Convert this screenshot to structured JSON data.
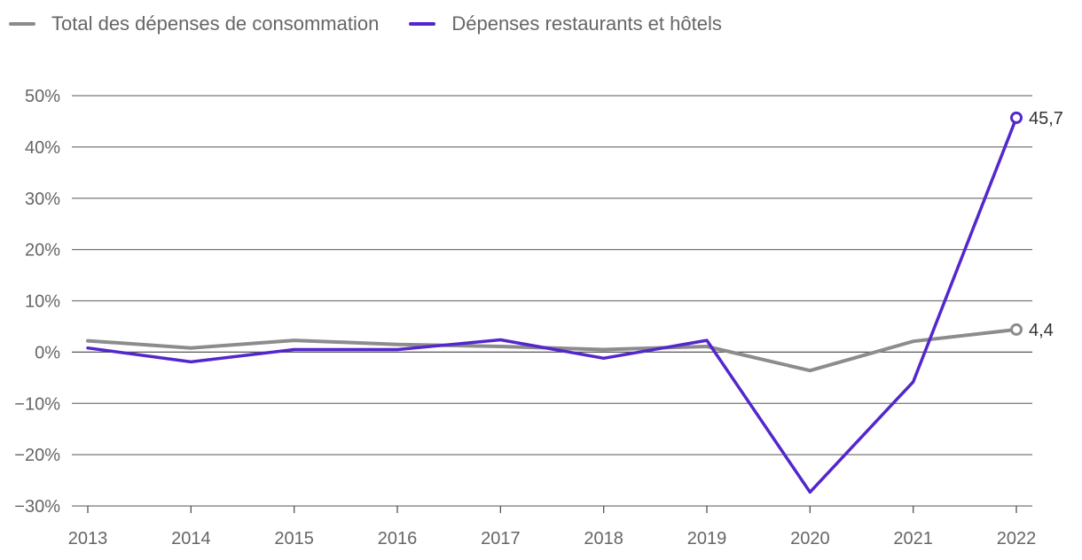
{
  "chart_data": {
    "type": "line",
    "title": "",
    "xlabel": "",
    "ylabel": "",
    "x": [
      2013,
      2014,
      2015,
      2016,
      2017,
      2018,
      2019,
      2020,
      2021,
      2022
    ],
    "x_tick_labels": [
      "2013",
      "2014",
      "2015",
      "2016",
      "2017",
      "2018",
      "2019",
      "2020",
      "2021",
      "2022"
    ],
    "ylim": [
      -30,
      50
    ],
    "y_ticks": [
      50,
      40,
      30,
      20,
      10,
      0,
      -10,
      -20,
      -30
    ],
    "y_tick_labels": [
      "50%",
      "40%",
      "30%",
      "20%",
      "10%",
      "0%",
      "−10%",
      "−20%",
      "−30%"
    ],
    "grid": true,
    "legend_position": "top-left",
    "series": [
      {
        "name": "Total des dépenses de consommation",
        "color": "#8c8c8c",
        "values": [
          2.2,
          0.8,
          2.3,
          1.5,
          1.1,
          0.5,
          1.1,
          -3.6,
          2.1,
          4.4
        ],
        "end_label": "4,4"
      },
      {
        "name": "Dépenses restaurants et hôtels",
        "color": "#5227cc",
        "values": [
          0.8,
          -1.9,
          0.5,
          0.5,
          2.4,
          -1.2,
          2.3,
          -27.3,
          -5.8,
          45.7
        ],
        "end_label": "45,7"
      }
    ]
  }
}
